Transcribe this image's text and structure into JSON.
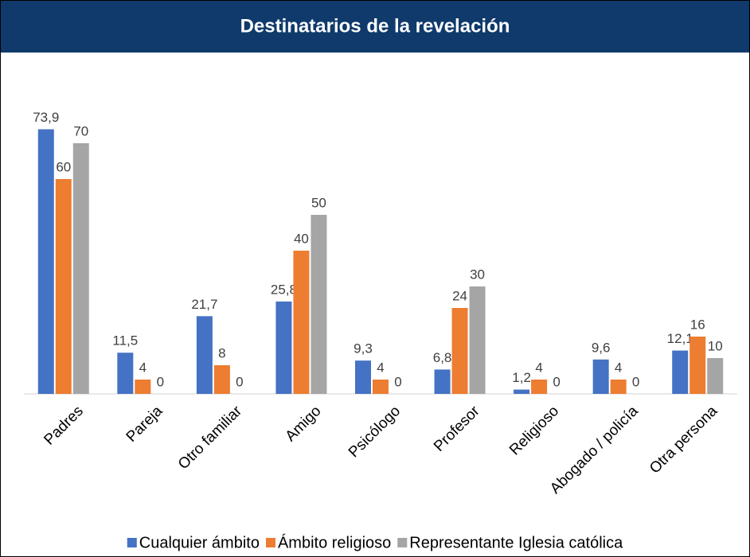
{
  "chart_data": {
    "type": "bar",
    "title": "Destinatarios de la revelación",
    "categories": [
      "Padres",
      "Pareja",
      "Otro familiar",
      "Amigo",
      "Psicólogo",
      "Profesor",
      "Religioso",
      "Abogado / policía",
      "Otra persona"
    ],
    "series": [
      {
        "name": "Cualquier ámbito",
        "color": "#4472c4",
        "values": [
          73.9,
          11.5,
          21.7,
          25.8,
          9.3,
          6.8,
          1.2,
          9.6,
          12.1
        ],
        "value_labels": [
          "73,9",
          "11,5",
          "21,7",
          "25,8",
          "9,3",
          "6,8",
          "1,2",
          "9,6",
          "12,1"
        ]
      },
      {
        "name": "Ámbito religioso",
        "color": "#ed7d31",
        "values": [
          60,
          4,
          8,
          40,
          4,
          24,
          4,
          4,
          16
        ]
      },
      {
        "name": "Representante Iglesia católica",
        "color": "#a5a5a5",
        "values": [
          70,
          0,
          0,
          50,
          0,
          30,
          0,
          0,
          10
        ]
      }
    ]
  }
}
